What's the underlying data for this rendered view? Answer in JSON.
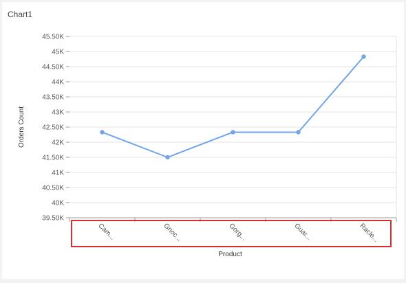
{
  "title": "Chart1",
  "chart_data": {
    "type": "line",
    "title": "Chart1",
    "xlabel": "Product",
    "ylabel": "Orders Count",
    "categories": [
      "Cam...",
      "Gnoc...",
      "Gorg...",
      "Guar...",
      "Racle..."
    ],
    "series": [
      {
        "values": [
          42330,
          41500,
          42330,
          42330,
          44830
        ]
      }
    ],
    "ylim": [
      39500,
      45500
    ],
    "yticks": [
      {
        "value": 45500,
        "label": "45.50K"
      },
      {
        "value": 45000,
        "label": "45K"
      },
      {
        "value": 44500,
        "label": "44.50K"
      },
      {
        "value": 44000,
        "label": "44K"
      },
      {
        "value": 43500,
        "label": "43.50K"
      },
      {
        "value": 43000,
        "label": "43K"
      },
      {
        "value": 42500,
        "label": "42.50K"
      },
      {
        "value": 42000,
        "label": "42K"
      },
      {
        "value": 41500,
        "label": "41.50K"
      },
      {
        "value": 41000,
        "label": "41K"
      },
      {
        "value": 40500,
        "label": "40.50K"
      },
      {
        "value": 40000,
        "label": "40K"
      },
      {
        "value": 39500,
        "label": "39.50K"
      }
    ],
    "grid": true,
    "line_color": "#6fa5e8",
    "highlight_color": "#d32f2f"
  }
}
